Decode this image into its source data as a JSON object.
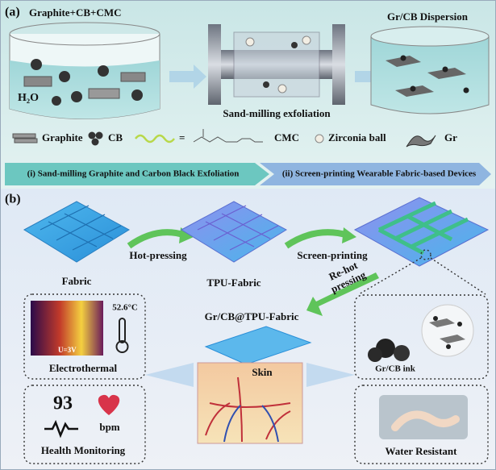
{
  "panel_a": {
    "label": "(a)",
    "inputs": "Graphite+CB+CMC",
    "solvent": "H₂O",
    "process": "Sand-milling exfoliation",
    "product": "Gr/CB Dispersion",
    "legend": [
      "Graphite",
      "CB",
      "=",
      "CMC",
      "Zirconia ball",
      "Gr"
    ],
    "steps": [
      "(i) Sand-milling Graphite and Carbon Black Exfoliation",
      "(ii) Screen-printing Wearable Fabric-based Devices"
    ]
  },
  "panel_b": {
    "label": "(b)",
    "stages": [
      "Fabric",
      "TPU-Fabric"
    ],
    "steps": [
      "Hot-pressing",
      "Screen-printing"
    ],
    "re_hot_pressing": [
      "Re-hot",
      "pressing"
    ],
    "device": "Gr/CB@TPU-Fabric",
    "skin": "Skin",
    "electrothermal": {
      "temperature": "52.6°C",
      "voltage": "U=3V",
      "title": "Electrothermal"
    },
    "health": {
      "heart_rate": "93",
      "unit": "bpm",
      "title": "Health Monitoring"
    },
    "ink": "Gr/CB ink",
    "water": "Water Resistant"
  }
}
